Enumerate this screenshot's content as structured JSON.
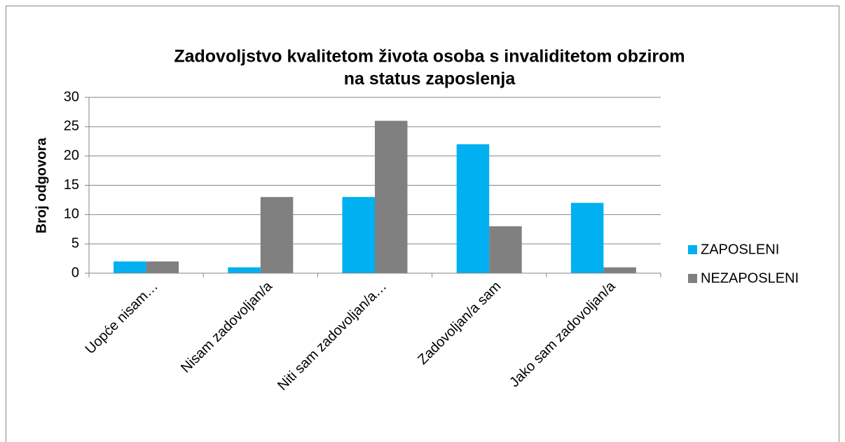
{
  "chart_data": {
    "type": "bar",
    "title": [
      "Zadovoljstvo kvalitetom života osoba s invaliditetom obzirom",
      "na status zaposlenja"
    ],
    "y_label": "Broj odgovora",
    "categories": [
      "Uopće nisam…",
      "Nisam zadovoljan/a",
      "Niti sam zadovoljan/a…",
      "Zadovoljan/a sam",
      "Jako sam zadovoljan/a"
    ],
    "series": [
      {
        "name": "ZAPOSLENI",
        "color": "#00b0f0",
        "values": [
          2,
          1,
          13,
          22,
          12
        ]
      },
      {
        "name": "NEZAPOSLENI",
        "color": "#808080",
        "values": [
          2,
          13,
          26,
          8,
          1
        ]
      }
    ],
    "ylim": [
      0,
      30
    ],
    "yticks": [
      0,
      5,
      10,
      15,
      20,
      25,
      30
    ],
    "grid": true,
    "legend": "right"
  }
}
